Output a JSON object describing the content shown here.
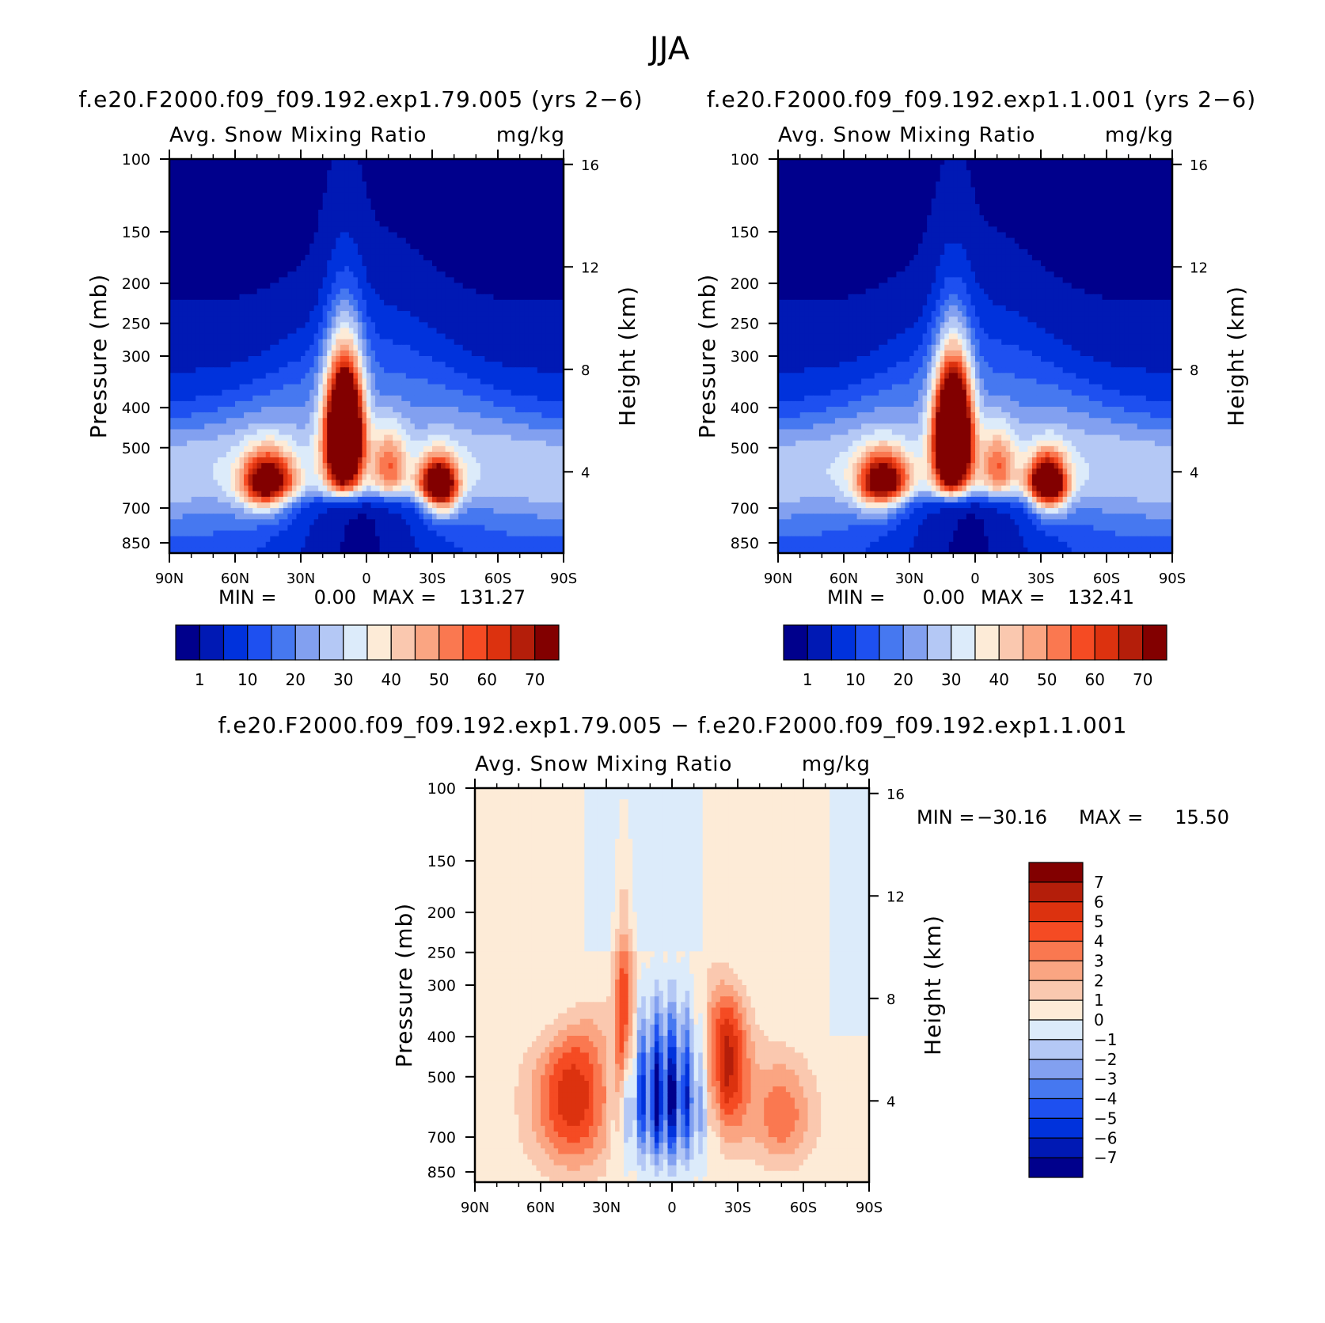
{
  "figure": {
    "title": "JJA"
  },
  "palettes": {
    "abs": [
      "#00008c",
      "#0019b4",
      "#0032dc",
      "#1e50f0",
      "#4678f0",
      "#82a0f0",
      "#b4c8f5",
      "#dcebfa",
      "#fdebd7",
      "#fac8af",
      "#faa582",
      "#fa7850",
      "#f54b23",
      "#dc320f",
      "#b41e0a",
      "#820000"
    ],
    "diff": [
      "#00008c",
      "#0019b4",
      "#0032dc",
      "#1e50f0",
      "#4678f0",
      "#82a0f0",
      "#b4c8f5",
      "#dcebfa",
      "#fdebd7",
      "#fac8af",
      "#faa582",
      "#fa7850",
      "#f54b23",
      "#dc320f",
      "#b41e0a",
      "#820000"
    ]
  },
  "chart_data": [
    {
      "type": "heatmap",
      "title": "f.e20.F2000.f09_f09.192.exp1.79.005 (yrs 2-6)",
      "left_string": "Avg. Snow Mixing Ratio",
      "right_string": "mg/kg",
      "ylabel": "Pressure (mb)",
      "ylabel_right": "Height (km)",
      "x_ticks": [
        "90N",
        "60N",
        "30N",
        "0",
        "30S",
        "60S",
        "90S"
      ],
      "x_values": [
        90,
        60,
        30,
        0,
        -30,
        -60,
        -90
      ],
      "y_ticks": [
        "100",
        "150",
        "200",
        "250",
        "300",
        "400",
        "500",
        "700",
        "850"
      ],
      "y_values": [
        100,
        150,
        200,
        250,
        300,
        400,
        500,
        700,
        850
      ],
      "y_range_mb": [
        100,
        900
      ],
      "y_right_ticks": [
        "16",
        "12",
        "8",
        "4"
      ],
      "y_right_values": [
        16,
        12,
        8,
        4
      ],
      "min_label": "MIN =",
      "min_value": "0.00",
      "max_label": "MAX =",
      "max_value": "131.27",
      "colorbar_orientation": "horizontal",
      "colorbar_labels": [
        "1",
        "10",
        "20",
        "30",
        "40",
        "50",
        "60",
        "70"
      ],
      "features": {
        "nh_max_lat": 10,
        "nh_max_p": 460,
        "nh_max_val": 110,
        "sh_max_lat": -33,
        "sh_max_p": 630,
        "sh_max_val": 75,
        "nhmid_lat": 45,
        "nhmid_val": 62
      }
    },
    {
      "type": "heatmap",
      "title": "f.e20.F2000.f09_f09.192.exp1.1.001 (yrs 2-6)",
      "left_string": "Avg. Snow Mixing Ratio",
      "right_string": "mg/kg",
      "ylabel": "Pressure (mb)",
      "ylabel_right": "Height (km)",
      "x_ticks": [
        "90N",
        "60N",
        "30N",
        "0",
        "30S",
        "60S",
        "90S"
      ],
      "x_values": [
        90,
        60,
        30,
        0,
        -30,
        -60,
        -90
      ],
      "y_ticks": [
        "100",
        "150",
        "200",
        "250",
        "300",
        "400",
        "500",
        "700",
        "850"
      ],
      "y_values": [
        100,
        150,
        200,
        250,
        300,
        400,
        500,
        700,
        850
      ],
      "y_range_mb": [
        100,
        900
      ],
      "y_right_ticks": [
        "16",
        "12",
        "8",
        "4"
      ],
      "y_right_values": [
        16,
        12,
        8,
        4
      ],
      "min_label": "MIN =",
      "min_value": "0.00",
      "max_label": "MAX =",
      "max_value": "132.41",
      "colorbar_orientation": "horizontal",
      "colorbar_labels": [
        "1",
        "10",
        "20",
        "30",
        "40",
        "50",
        "60",
        "70"
      ],
      "features": {
        "nh_max_lat": 10,
        "nh_max_p": 470,
        "nh_max_val": 112,
        "sh_max_lat": -33,
        "sh_max_p": 620,
        "sh_max_val": 78,
        "nhmid_lat": 42,
        "nhmid_val": 60
      }
    },
    {
      "type": "heatmap",
      "title": "f.e20.F2000.f09_f09.192.exp1.79.005 - f.e20.F2000.f09_f09.192.exp1.1.001",
      "left_string": "Avg. Snow Mixing Ratio",
      "right_string": "mg/kg",
      "ylabel": "Pressure (mb)",
      "ylabel_right": "Height (km)",
      "x_ticks": [
        "90N",
        "60N",
        "30N",
        "0",
        "30S",
        "60S",
        "90S"
      ],
      "x_values": [
        90,
        60,
        30,
        0,
        -30,
        -60,
        -90
      ],
      "y_ticks": [
        "100",
        "150",
        "200",
        "250",
        "300",
        "400",
        "500",
        "700",
        "850"
      ],
      "y_values": [
        100,
        150,
        200,
        250,
        300,
        400,
        500,
        700,
        850
      ],
      "y_range_mb": [
        100,
        900
      ],
      "y_right_ticks": [
        "16",
        "12",
        "8",
        "4"
      ],
      "y_right_values": [
        16,
        12,
        8,
        4
      ],
      "min_label": "MIN =",
      "min_value": "-30.16",
      "max_label": "MAX =",
      "max_value": "15.50",
      "colorbar_orientation": "vertical",
      "colorbar_labels": [
        "7",
        "6",
        "5",
        "4",
        "3",
        "2",
        "1",
        "0",
        "-1",
        "-2",
        "-3",
        "-4",
        "-5",
        "-6",
        "-7"
      ]
    }
  ]
}
